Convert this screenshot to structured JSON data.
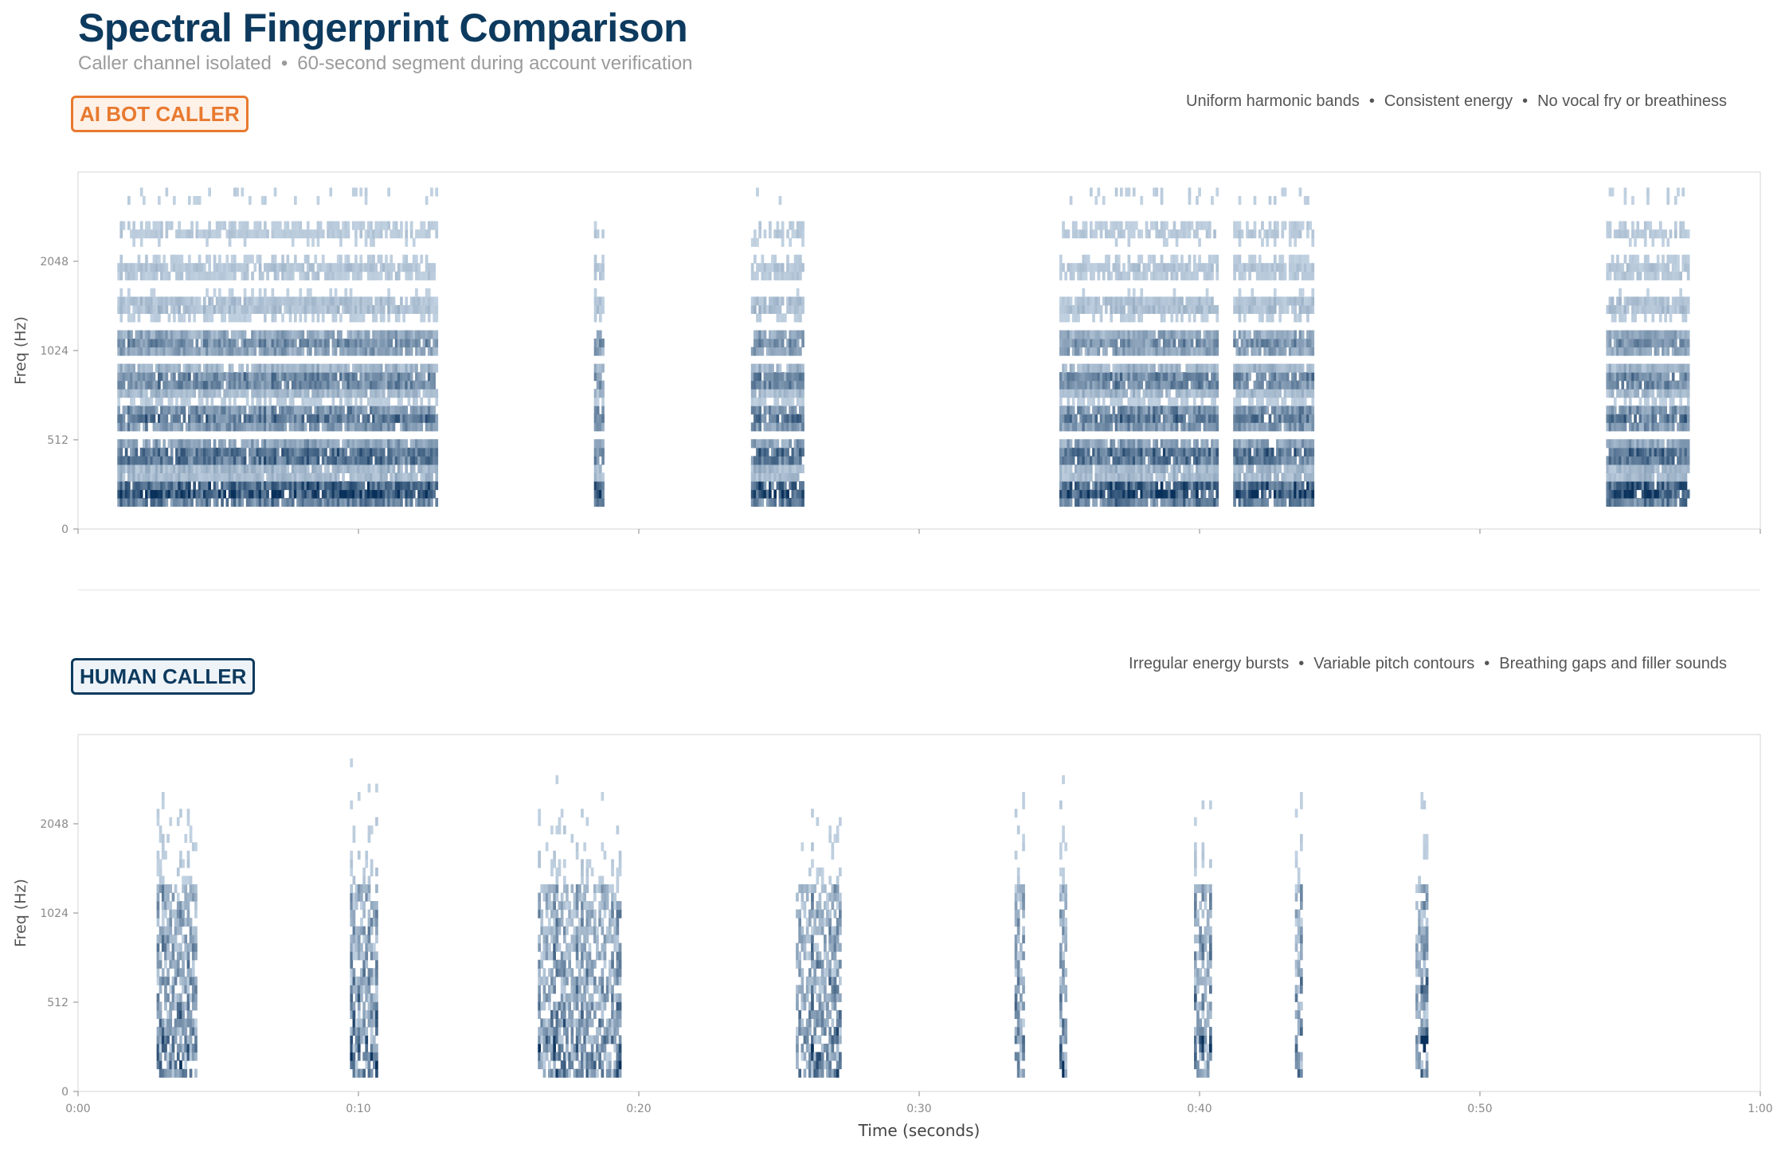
{
  "header": {
    "title": "Spectral Fingerprint Comparison",
    "subtitle_part1": "Caller channel isolated",
    "subtitle_part2": "60-second segment during account verification",
    "separator": "•"
  },
  "bot_panel": {
    "badge": "AI BOT CALLER",
    "traits": [
      "Uniform harmonic bands",
      "Consistent energy",
      "No vocal fry or breathiness"
    ]
  },
  "human_panel": {
    "badge": "HUMAN CALLER",
    "traits": [
      "Irregular energy bursts",
      "Variable pitch contours",
      "Breathing gaps and filler sounds"
    ]
  },
  "colors": {
    "title": "#0d3a5e",
    "bot_accent": "#e8792f",
    "human_accent": "#0d3a5e",
    "spectrum_dark": "#08305a",
    "spectrum_light": "#dbe8f4"
  },
  "chart_data": [
    {
      "type": "heatmap",
      "name": "bot",
      "title": "",
      "xlabel": "",
      "ylabel": "Freq (Hz)",
      "xlim": [
        0,
        60
      ],
      "y_ticks": [
        0,
        512,
        1024,
        2048
      ],
      "x_tick_labels": [],
      "x_tick_positions": [
        0,
        10,
        20,
        30,
        40,
        50,
        60
      ],
      "speech_segments_s": [
        [
          1.4,
          12.8
        ],
        [
          18.4,
          18.7
        ],
        [
          24.0,
          25.8
        ],
        [
          35.0,
          40.6
        ],
        [
          41.2,
          44.0
        ],
        [
          54.5,
          57.4
        ]
      ],
      "energy": "uniform"
    },
    {
      "type": "heatmap",
      "name": "human",
      "title": "",
      "xlabel": "Time (seconds)",
      "ylabel": "Freq (Hz)",
      "xlim": [
        0,
        60
      ],
      "y_ticks": [
        0,
        512,
        1024,
        2048
      ],
      "x_tick_labels": [
        "0:00",
        "0:10",
        "0:20",
        "0:30",
        "0:40",
        "0:50",
        "1:00"
      ],
      "x_tick_positions": [
        0,
        10,
        20,
        30,
        40,
        50,
        60
      ],
      "speech_segments_s": [
        [
          2.8,
          4.2
        ],
        [
          9.7,
          10.6
        ],
        [
          16.4,
          19.3
        ],
        [
          25.6,
          27.2
        ],
        [
          33.4,
          33.7
        ],
        [
          35.0,
          35.2
        ],
        [
          39.8,
          40.4
        ],
        [
          43.4,
          43.6
        ],
        [
          47.7,
          48.1
        ]
      ],
      "energy": "irregular"
    }
  ]
}
